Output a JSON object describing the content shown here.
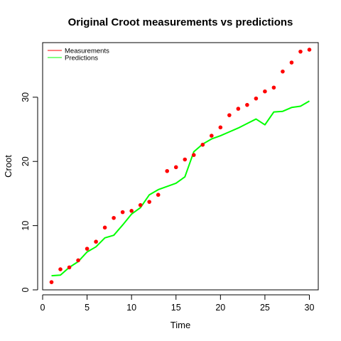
{
  "chart_data": {
    "type": "line",
    "title": "Original Croot measurements vs predictions",
    "xlabel": "Time",
    "ylabel": "Croot",
    "xlim": [
      0,
      31
    ],
    "ylim": [
      0,
      38.5
    ],
    "x_ticks": [
      0,
      5,
      10,
      15,
      20,
      25,
      30
    ],
    "y_ticks": [
      0,
      10,
      20,
      30
    ],
    "grid": false,
    "legend_position": "top-left",
    "x": [
      1,
      2,
      3,
      4,
      5,
      6,
      7,
      8,
      9,
      10,
      11,
      12,
      13,
      14,
      15,
      16,
      17,
      18,
      19,
      20,
      21,
      22,
      23,
      24,
      25,
      26,
      27,
      28,
      29,
      30
    ],
    "series": [
      {
        "name": "Measurements",
        "style": "points",
        "legend_style": "line",
        "color": "#ff0000",
        "values": [
          1.2,
          3.2,
          3.5,
          4.6,
          6.4,
          7.5,
          9.7,
          11.2,
          12.1,
          12.3,
          13.2,
          13.7,
          14.8,
          18.5,
          19.1,
          20.3,
          21.0,
          22.6,
          24.0,
          25.3,
          27.2,
          28.2,
          28.8,
          29.8,
          30.9,
          31.5,
          34.0,
          35.4,
          37.1,
          37.4
        ]
      },
      {
        "name": "Predictions",
        "style": "line",
        "legend_style": "line",
        "color": "#00ff00",
        "values": [
          2.2,
          2.3,
          3.5,
          4.4,
          5.9,
          6.7,
          8.1,
          8.5,
          10.1,
          11.8,
          12.8,
          14.8,
          15.6,
          16.1,
          16.6,
          17.6,
          21.5,
          22.7,
          23.5,
          24.0,
          24.6,
          25.2,
          25.9,
          26.6,
          25.7,
          27.7,
          27.8,
          28.4,
          28.6,
          29.4
        ]
      }
    ]
  }
}
